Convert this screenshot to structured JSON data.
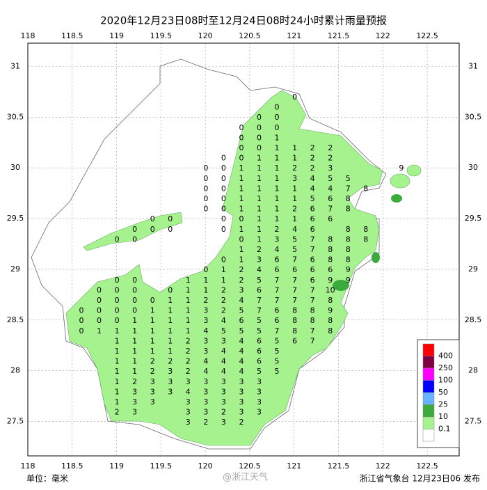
{
  "header": {
    "title": "2020年12月23日08时至12月24日08时24小时累计雨量预报"
  },
  "map": {
    "xlim": [
      118,
      122.86
    ],
    "ylim": [
      27.16,
      31.23
    ],
    "xticks": [
      118,
      118.5,
      119,
      119.5,
      120,
      120.5,
      121,
      121.5,
      122,
      122.5
    ],
    "yticks": [
      27.5,
      28,
      28.5,
      29,
      29.5,
      30,
      30.5,
      31
    ],
    "grid": true,
    "grid_rows": [
      [
        null,
        null,
        null,
        null,
        null,
        null,
        null,
        null,
        null,
        null,
        null,
        null,
        0
      ],
      [
        null,
        null,
        null,
        null,
        null,
        null,
        null,
        null,
        null,
        null,
        null,
        0
      ],
      [
        null,
        null,
        null,
        null,
        null,
        null,
        null,
        null,
        null,
        null,
        0,
        0
      ],
      [
        null,
        null,
        null,
        null,
        null,
        null,
        null,
        null,
        null,
        0,
        0,
        0
      ],
      [
        null,
        null,
        null,
        null,
        null,
        null,
        null,
        null,
        null,
        0,
        0,
        1
      ],
      [
        null,
        null,
        null,
        null,
        null,
        null,
        null,
        null,
        null,
        0,
        0,
        1,
        1,
        2,
        2
      ],
      [
        null,
        null,
        null,
        null,
        null,
        null,
        null,
        null,
        0,
        0,
        1,
        1,
        1,
        2,
        2
      ],
      [
        null,
        null,
        null,
        null,
        null,
        null,
        null,
        0,
        0,
        1,
        1,
        1,
        2,
        2,
        3,
        null,
        null,
        null,
        9
      ],
      [
        null,
        null,
        null,
        null,
        null,
        null,
        null,
        0,
        0,
        1,
        1,
        1,
        3,
        4,
        5,
        5
      ],
      [
        null,
        null,
        null,
        null,
        null,
        null,
        null,
        0,
        0,
        1,
        1,
        1,
        1,
        4,
        4,
        7,
        8
      ],
      [
        null,
        null,
        null,
        null,
        null,
        null,
        null,
        0,
        0,
        1,
        1,
        1,
        1,
        5,
        6,
        8
      ],
      [
        null,
        null,
        null,
        null,
        null,
        null,
        null,
        0,
        0,
        1,
        1,
        1,
        2,
        6,
        7,
        8
      ],
      [
        null,
        null,
        null,
        null,
        0,
        0,
        null,
        null,
        0,
        0,
        1,
        1,
        1,
        6,
        6
      ],
      [
        null,
        null,
        null,
        0,
        0,
        0,
        null,
        null,
        0,
        1,
        1,
        2,
        4,
        6,
        null,
        8,
        8
      ],
      [
        null,
        null,
        0,
        0,
        null,
        null,
        null,
        null,
        null,
        0,
        1,
        3,
        5,
        7,
        8,
        8,
        8
      ],
      [
        null,
        null,
        null,
        null,
        null,
        null,
        null,
        null,
        null,
        1,
        2,
        4,
        5,
        7,
        8,
        8
      ],
      [
        null,
        null,
        null,
        null,
        null,
        null,
        null,
        null,
        0,
        1,
        3,
        6,
        7,
        6,
        8,
        8
      ],
      [
        null,
        null,
        null,
        null,
        null,
        null,
        null,
        0,
        1,
        2,
        4,
        6,
        6,
        6,
        6,
        9
      ],
      [
        null,
        null,
        0,
        0,
        null,
        null,
        1,
        1,
        1,
        2,
        5,
        7,
        7,
        6,
        9,
        9
      ],
      [
        null,
        0,
        0,
        0,
        null,
        0,
        1,
        1,
        2,
        3,
        6,
        7,
        7,
        7,
        10
      ],
      [
        null,
        0,
        0,
        0,
        0,
        1,
        1,
        2,
        2,
        4,
        7,
        7,
        7,
        7,
        8
      ],
      [
        0,
        0,
        0,
        0,
        1,
        1,
        1,
        3,
        2,
        5,
        7,
        6,
        8,
        8,
        9
      ],
      [
        0,
        0,
        0,
        1,
        1,
        1,
        1,
        3,
        4,
        6,
        5,
        6,
        8,
        8,
        8
      ],
      [
        0,
        1,
        1,
        1,
        1,
        1,
        1,
        4,
        5,
        5,
        5,
        7,
        8,
        7,
        8
      ],
      [
        null,
        null,
        1,
        1,
        1,
        1,
        2,
        3,
        3,
        4,
        6,
        5,
        6,
        7
      ],
      [
        null,
        null,
        1,
        1,
        1,
        1,
        2,
        3,
        4,
        4,
        6,
        5
      ],
      [
        null,
        null,
        1,
        1,
        2,
        2,
        2,
        4,
        4,
        4,
        6,
        5
      ],
      [
        null,
        null,
        1,
        1,
        2,
        3,
        2,
        4,
        4,
        4,
        5,
        5
      ],
      [
        null,
        null,
        1,
        2,
        3,
        3,
        3,
        3,
        3,
        3,
        3
      ],
      [
        null,
        null,
        1,
        3,
        3,
        3,
        4,
        3,
        3,
        3,
        3
      ],
      [
        null,
        null,
        1,
        3,
        3,
        null,
        3,
        3,
        3,
        3,
        3
      ],
      [
        null,
        null,
        2,
        3,
        null,
        null,
        3,
        3,
        2,
        3,
        3
      ],
      [
        null,
        null,
        null,
        null,
        null,
        null,
        3,
        2,
        3,
        2
      ]
    ]
  },
  "legend": {
    "colors": [
      "#ff0000",
      "#800040",
      "#ff00ff",
      "#0000ff",
      "#66b3ff",
      "#3caa3c",
      "#a6f28f",
      "#ffffff"
    ],
    "labels": [
      400,
      250,
      100,
      50,
      25,
      10,
      0.1
    ]
  },
  "footer": {
    "unit": "单位：毫米",
    "watermark": "@浙江天气",
    "issuer": "浙江省气象台 12月23日06 发布"
  }
}
